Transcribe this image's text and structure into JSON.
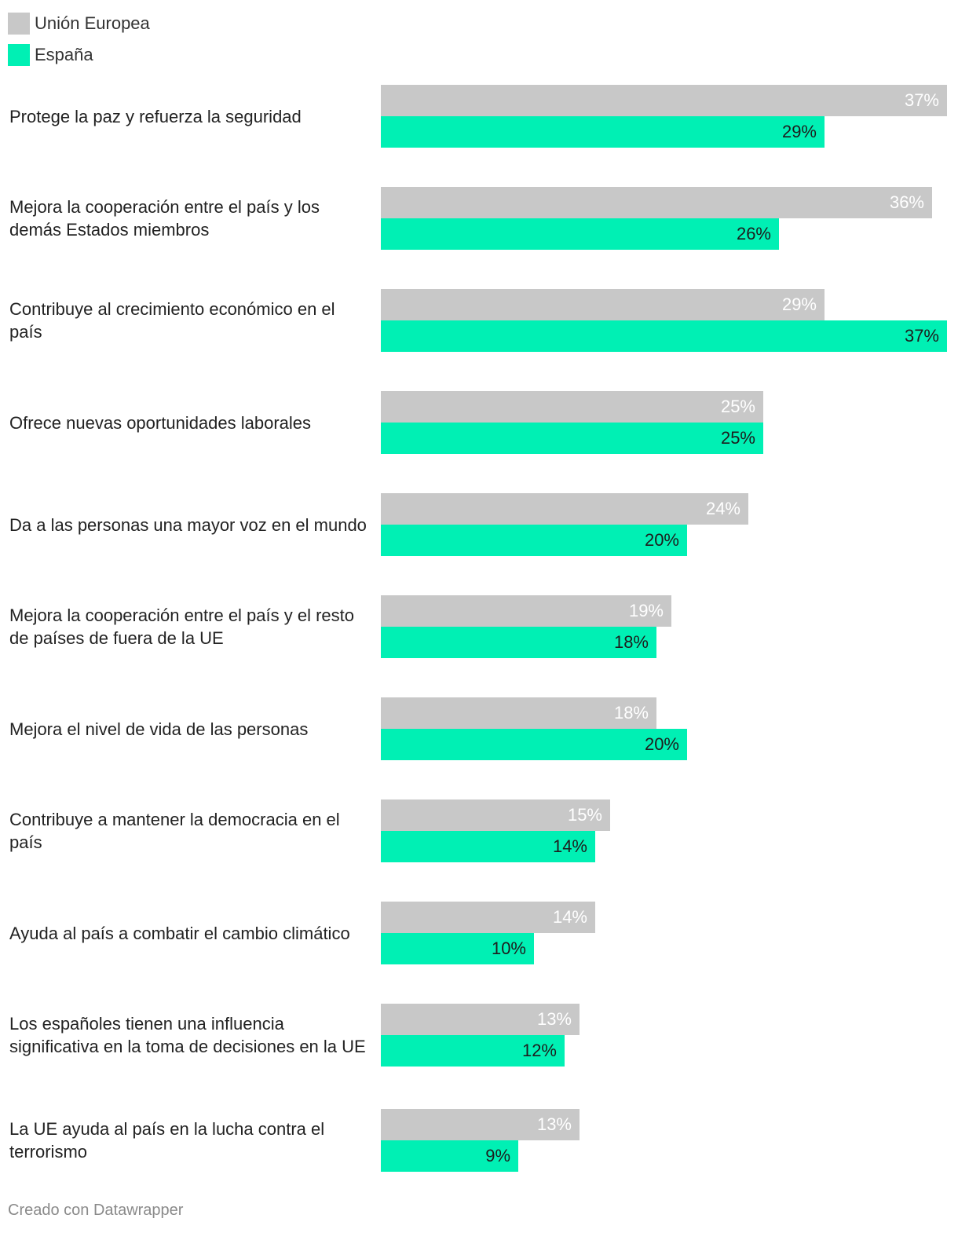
{
  "legend": [
    {
      "name": "Unión Europea",
      "color": "#c8c8c8"
    },
    {
      "name": "España",
      "color": "#00f0b4"
    }
  ],
  "chart_data": {
    "type": "bar",
    "orientation": "horizontal",
    "unit": "%",
    "xlim": [
      0,
      37
    ],
    "categories": [
      "Protege la paz y refuerza la seguridad",
      "Mejora la cooperación entre el país y los demás Estados miembros",
      "Contribuye al crecimiento económico en el país",
      "Ofrece nuevas oportunidades laborales",
      "Da a las personas una mayor voz en el mundo",
      "Mejora la cooperación entre el país y el resto de países de fuera de la UE",
      "Mejora el nivel de vida de las personas",
      "Contribuye a mantener la democracia en el país",
      "Ayuda al país a combatir el cambio climático",
      "Los españoles tienen una influencia significativa en la toma de decisiones en la UE",
      "La UE ayuda al país en la lucha contra el terrorismo"
    ],
    "series": [
      {
        "name": "Unión Europea",
        "color": "#c8c8c8",
        "values": [
          37,
          36,
          29,
          25,
          24,
          19,
          18,
          15,
          14,
          13,
          13
        ]
      },
      {
        "name": "España",
        "color": "#00f0b4",
        "values": [
          29,
          26,
          37,
          25,
          20,
          18,
          20,
          14,
          10,
          12,
          9
        ]
      }
    ]
  },
  "footer": "Creado con Datawrapper"
}
